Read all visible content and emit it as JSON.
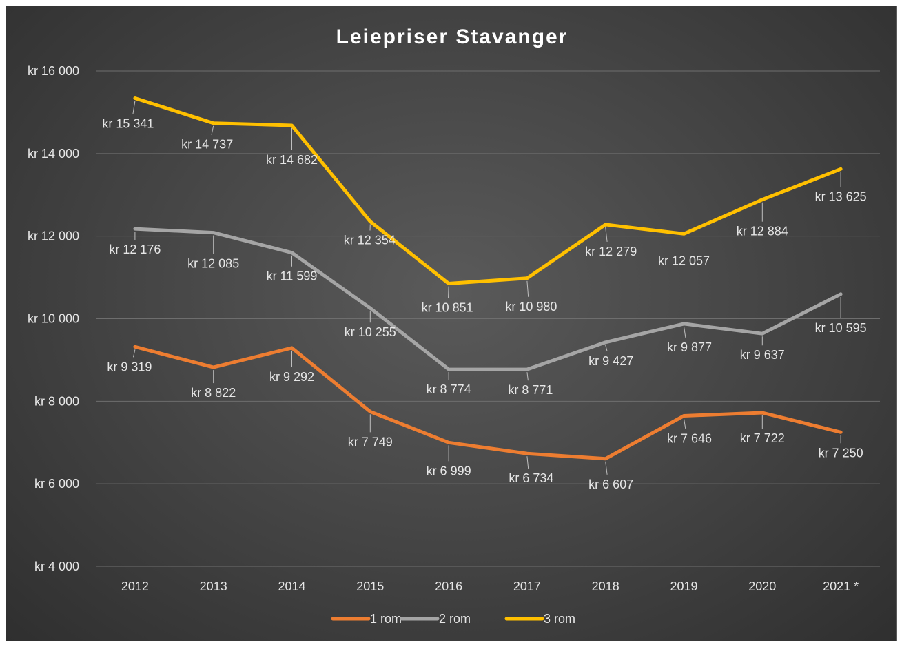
{
  "chart_data": {
    "type": "line",
    "title": "Leiepriser Stavanger",
    "xlabel": "",
    "ylabel": "",
    "x": [
      "2012",
      "2013",
      "2014",
      "2015",
      "2016",
      "2017",
      "2018",
      "2019",
      "2020",
      "2021 *"
    ],
    "ylim": [
      4000,
      16000
    ],
    "yticks": [
      4000,
      6000,
      8000,
      10000,
      12000,
      14000,
      16000
    ],
    "ytick_labels": [
      "kr 4 000",
      "kr 6 000",
      "kr 8 000",
      "kr 10 000",
      "kr 12 000",
      "kr 14 000",
      "kr 16 000"
    ],
    "grid": "horizontal",
    "legend_position": "bottom",
    "series": [
      {
        "name": "1 rom",
        "color": "#ED7D31",
        "values": [
          9319,
          8822,
          9292,
          7749,
          6999,
          6734,
          6607,
          7646,
          7722,
          7250
        ],
        "labels": [
          "kr 9 319",
          "kr 8 822",
          "kr 9 292",
          "kr 7 749",
          "kr 6 999",
          "kr 6 734",
          "kr 6 607",
          "kr 7 646",
          "kr 7 722",
          "kr 7 250"
        ]
      },
      {
        "name": "2 rom",
        "color": "#A5A5A5",
        "values": [
          12176,
          12085,
          11599,
          10255,
          8774,
          8771,
          9427,
          9877,
          9637,
          10595
        ],
        "labels": [
          "kr 12 176",
          "kr 12 085",
          "kr 11 599",
          "kr 10 255",
          "kr 8 774",
          "kr 8 771",
          "kr 9 427",
          "kr 9 877",
          "kr 9 637",
          "kr 10 595"
        ]
      },
      {
        "name": "3 rom",
        "color": "#FFC000",
        "values": [
          15341,
          14737,
          14682,
          12354,
          10851,
          10980,
          12279,
          12057,
          12884,
          13625
        ],
        "labels": [
          "kr 15 341",
          "kr 14 737",
          "kr 14 682",
          "kr 12 354",
          "kr 10 851",
          "kr 10 980",
          "kr 12 279",
          "kr 12 057",
          "kr 12 884",
          "kr 13 625"
        ]
      }
    ]
  }
}
